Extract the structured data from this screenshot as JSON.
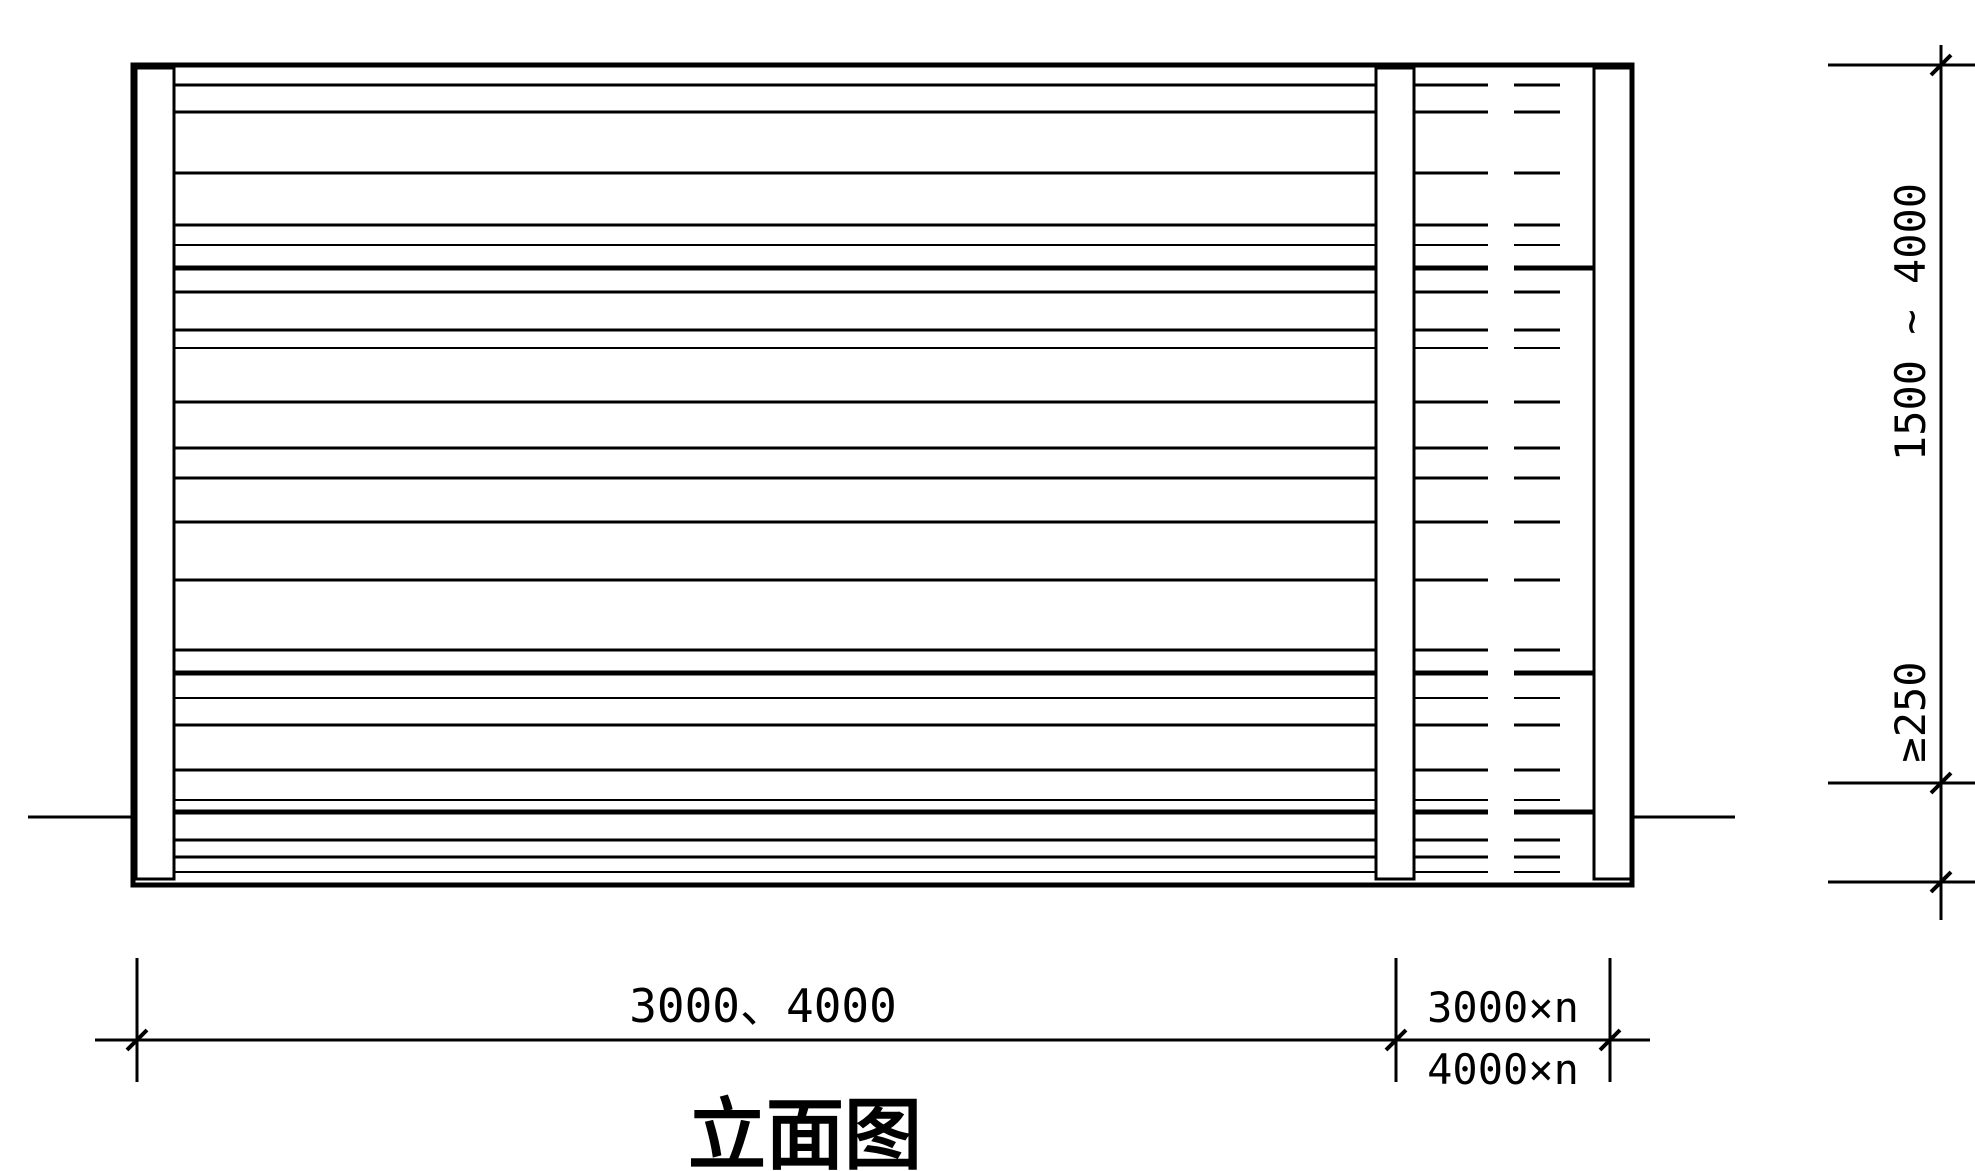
{
  "elevation": {
    "title": "立面图",
    "dimensions": {
      "panel_width": "3000、4000",
      "repeat_width_top": "3000×n",
      "repeat_width_bottom": "4000×n",
      "height_range": "1500 ~ 4000",
      "base_min": "≥250"
    }
  },
  "colors": {
    "line": "#000000",
    "background": "#ffffff"
  }
}
